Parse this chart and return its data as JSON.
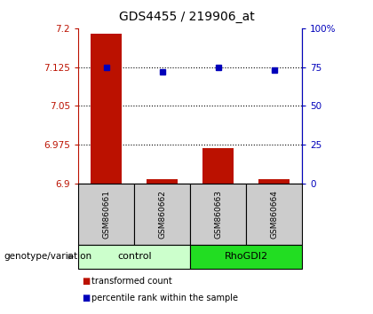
{
  "title": "GDS4455 / 219906_at",
  "samples": [
    "GSM860661",
    "GSM860662",
    "GSM860663",
    "GSM860664"
  ],
  "groups": [
    "control",
    "control",
    "RhoGDI2",
    "RhoGDI2"
  ],
  "transformed_counts": [
    7.19,
    6.908,
    6.968,
    6.908
  ],
  "percentile_ranks": [
    75,
    72,
    75,
    73
  ],
  "ylim_left": [
    6.9,
    7.2
  ],
  "ylim_right": [
    0,
    100
  ],
  "yticks_left": [
    6.9,
    6.975,
    7.05,
    7.125,
    7.2
  ],
  "ytick_labels_left": [
    "6.9",
    "6.975",
    "7.05",
    "7.125",
    "7.2"
  ],
  "yticks_right": [
    0,
    25,
    50,
    75,
    100
  ],
  "ytick_labels_right": [
    "0",
    "25",
    "50",
    "75",
    "100%"
  ],
  "bar_color": "#bb1100",
  "dot_color": "#0000bb",
  "background_color": "#ffffff",
  "sample_box_color": "#cccccc",
  "control_group_color": "#ccffcc",
  "rhogdi2_group_color": "#22dd22",
  "legend_red_label": "transformed count",
  "legend_blue_label": "percentile rank within the sample",
  "genotype_label": "genotype/variation",
  "dotted_lines_at_pct": [
    25,
    50,
    75
  ],
  "title_fontsize": 10,
  "tick_fontsize": 7.5,
  "sample_fontsize": 6.5,
  "group_fontsize": 8,
  "legend_fontsize": 7,
  "genotype_fontsize": 7.5
}
